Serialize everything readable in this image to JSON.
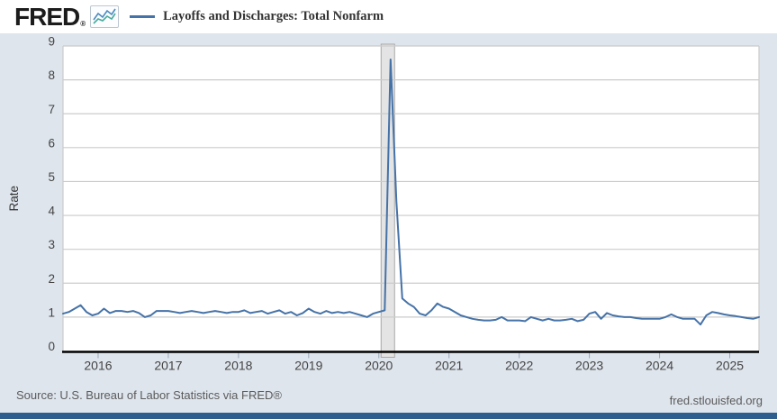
{
  "header": {
    "brand": "FRED",
    "registered_mark": "®",
    "legend_label": "Layoffs and Discharges: Total Nonfarm"
  },
  "chart_data": {
    "type": "line",
    "series_name": "Layoffs and Discharges: Total Nonfarm",
    "title": "Layoffs and Discharges: Total Nonfarm",
    "xlabel": "",
    "ylabel": "Rate",
    "ylim": [
      0,
      9
    ],
    "yticks": [
      0,
      1,
      2,
      3,
      4,
      5,
      6,
      7,
      8,
      9
    ],
    "grid": true,
    "legend_position": "top-left",
    "frequency": "monthly",
    "x_start": "2015-07",
    "x_end": "2025-06",
    "x_year_ticks": [
      2016,
      2017,
      2018,
      2019,
      2020,
      2021,
      2022,
      2023,
      2024,
      2025
    ],
    "values": [
      1.1,
      1.15,
      1.25,
      1.35,
      1.15,
      1.05,
      1.1,
      1.25,
      1.12,
      1.18,
      1.18,
      1.15,
      1.18,
      1.12,
      1.0,
      1.05,
      1.18,
      1.18,
      1.18,
      1.15,
      1.12,
      1.15,
      1.18,
      1.15,
      1.12,
      1.15,
      1.18,
      1.15,
      1.12,
      1.15,
      1.15,
      1.2,
      1.12,
      1.15,
      1.18,
      1.1,
      1.15,
      1.2,
      1.1,
      1.15,
      1.05,
      1.12,
      1.25,
      1.15,
      1.1,
      1.18,
      1.12,
      1.15,
      1.12,
      1.15,
      1.1,
      1.05,
      1.0,
      1.1,
      1.15,
      1.2,
      8.6,
      4.4,
      1.55,
      1.4,
      1.3,
      1.1,
      1.05,
      1.2,
      1.4,
      1.3,
      1.25,
      1.15,
      1.05,
      1.0,
      0.95,
      0.92,
      0.9,
      0.9,
      0.92,
      1.0,
      0.9,
      0.9,
      0.9,
      0.88,
      1.0,
      0.95,
      0.9,
      0.95,
      0.9,
      0.9,
      0.92,
      0.95,
      0.88,
      0.92,
      1.1,
      1.15,
      0.95,
      1.12,
      1.05,
      1.02,
      1.0,
      1.0,
      0.97,
      0.95,
      0.95,
      0.95,
      0.95,
      1.0,
      1.08,
      1.0,
      0.95,
      0.95,
      0.95,
      0.78,
      1.05,
      1.15,
      1.12,
      1.08,
      1.05,
      1.03,
      1.0,
      0.97,
      0.95,
      1.0
    ],
    "recession_bands": [
      {
        "start": "2020-02",
        "end": "2020-04"
      }
    ],
    "line_color": "#4572a7"
  },
  "footer": {
    "source": "Source: U.S. Bureau of Labor Statistics via FRED®",
    "site": "fred.stlouisfed.org"
  },
  "colors": {
    "background": "#dee5ed",
    "plot_background": "#ffffff",
    "gridline": "#cbcbcb",
    "axis_line": "#000000",
    "tick": "#9aa7b5",
    "tick_label": "#444444",
    "recession_fill": "#e4e4e4",
    "recession_border": "#a8a8a8",
    "footer_bar": "#2e5e8e",
    "spark_blue": "#4b8bbf",
    "spark_teal": "#49ab9e"
  }
}
